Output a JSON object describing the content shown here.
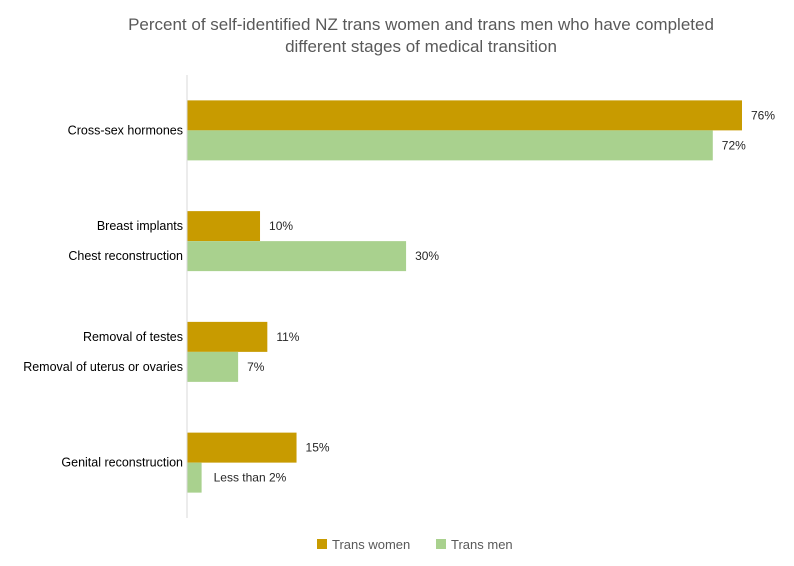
{
  "chart_data": {
    "type": "bar",
    "orientation": "horizontal",
    "title": "Percent of self-identified NZ trans women and trans men who have completed different stages of medical transition",
    "title_lines": [
      "Percent of self-identified NZ trans women and trans men who have completed",
      "different stages of medical transition"
    ],
    "xlim": [
      0,
      76
    ],
    "grid": false,
    "legend_position": "bottom",
    "colors": {
      "trans_women": "#C89B00",
      "trans_men": "#A9D18E",
      "axis": "#D9D9D9"
    },
    "series": [
      {
        "name": "Trans women",
        "color": "#C89B00"
      },
      {
        "name": "Trans men",
        "color": "#A9D18E"
      }
    ],
    "groups": [
      {
        "bars": [
          {
            "series": 0,
            "category": "Cross-sex hormones",
            "value": 76,
            "label": "76%"
          },
          {
            "series": 1,
            "category": "",
            "value": 72,
            "label": "72%"
          }
        ]
      },
      {
        "bars": [
          {
            "series": 0,
            "category": "Breast implants",
            "value": 10,
            "label": "10%"
          },
          {
            "series": 1,
            "category": "Chest reconstruction",
            "value": 30,
            "label": "30%"
          }
        ]
      },
      {
        "bars": [
          {
            "series": 0,
            "category": "Removal of testes",
            "value": 11,
            "label": "11%"
          },
          {
            "series": 1,
            "category": "Removal of uterus or ovaries",
            "value": 7,
            "label": "7%"
          }
        ]
      },
      {
        "bars": [
          {
            "series": 0,
            "category": "Genital reconstruction",
            "value": 15,
            "label": "15%"
          },
          {
            "series": 1,
            "category": "",
            "value": 2,
            "label": "Less than 2%"
          }
        ]
      }
    ]
  }
}
